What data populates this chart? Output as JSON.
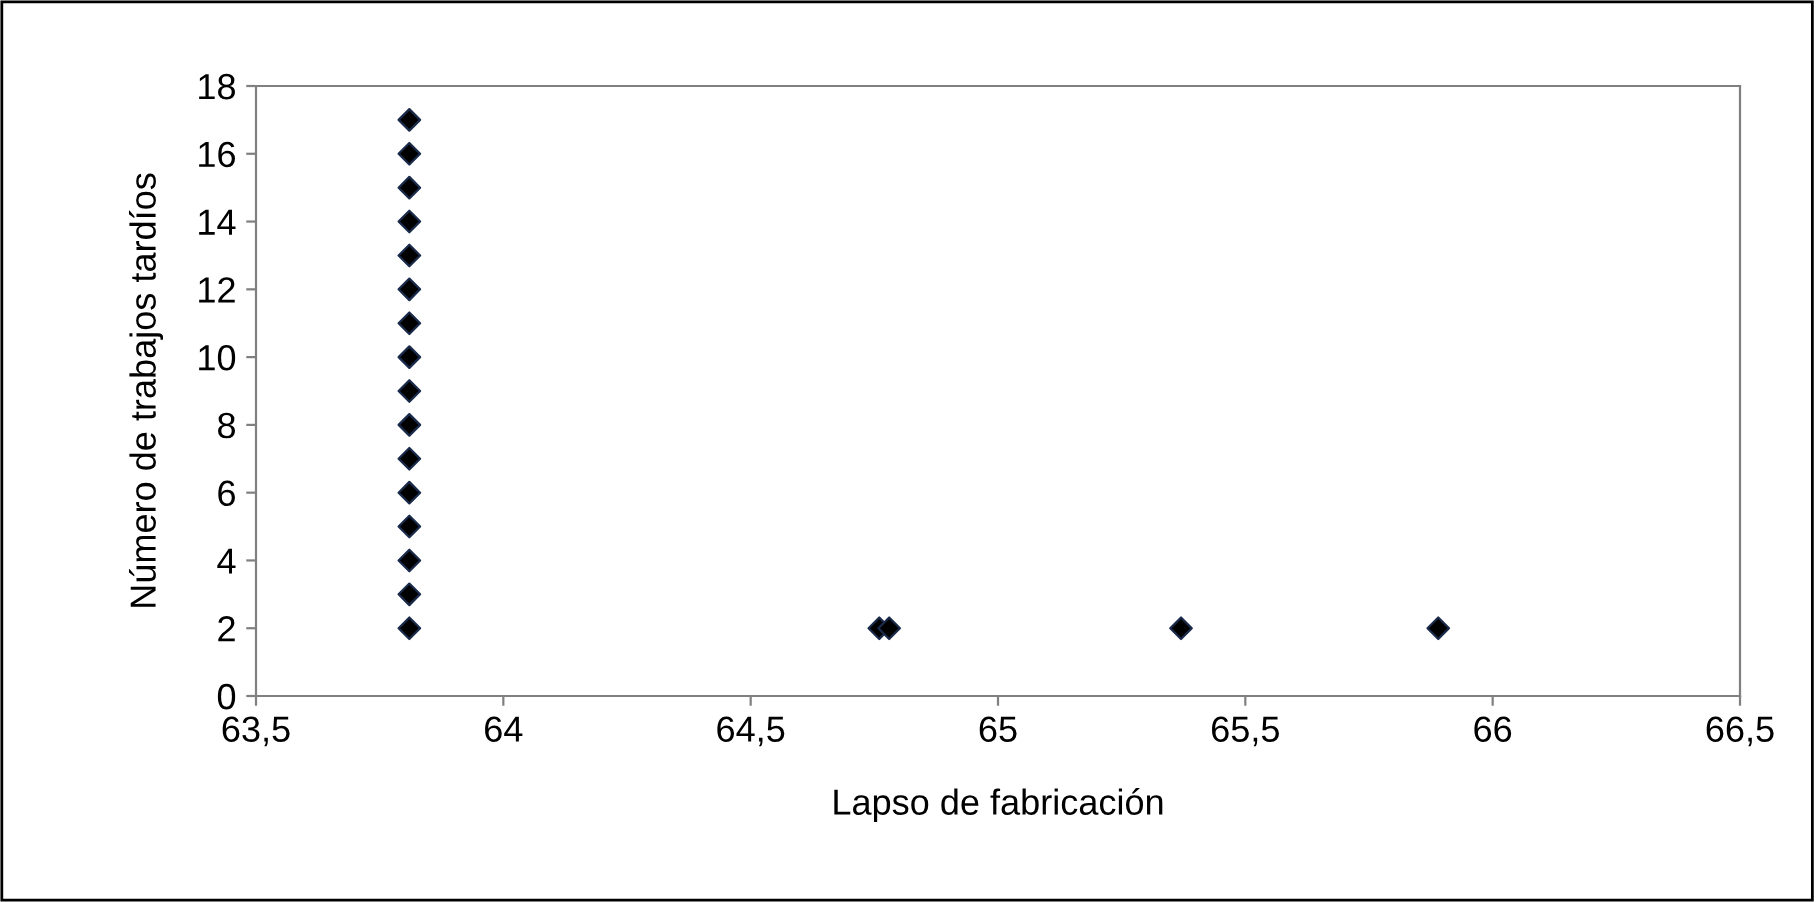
{
  "chart_data": {
    "type": "scatter",
    "xlabel": "Lapso de fabricación",
    "ylabel": "Número de trabajos tardíos",
    "series": [
      {
        "color": "#000000",
        "x": [
          63.81,
          63.81,
          63.81,
          63.81,
          63.81,
          63.81,
          63.81,
          63.81,
          63.81,
          63.81,
          63.81,
          63.81,
          63.81,
          63.81,
          63.81,
          63.81,
          64.76,
          64.78,
          65.37,
          65.89
        ],
        "values": [
          2,
          3,
          4,
          5,
          6,
          7,
          8,
          9,
          10,
          11,
          12,
          13,
          14,
          15,
          16,
          17,
          2,
          2,
          2,
          2
        ]
      }
    ],
    "marker": "diamond",
    "grid": false,
    "legend": false,
    "xlim": [
      63.5,
      66.5
    ],
    "xticks": [
      {
        "value": 63.5,
        "label": "63,5"
      },
      {
        "value": 64,
        "label": "64"
      },
      {
        "value": 64.5,
        "label": "64,5"
      },
      {
        "value": 65,
        "label": "65"
      },
      {
        "value": 65.5,
        "label": "65,5"
      },
      {
        "value": 66,
        "label": "66"
      },
      {
        "value": 66.5,
        "label": "66,5"
      }
    ],
    "ylim": [
      0,
      18
    ],
    "yticks": [
      0,
      2,
      4,
      6,
      8,
      10,
      12,
      14,
      16,
      18
    ]
  }
}
